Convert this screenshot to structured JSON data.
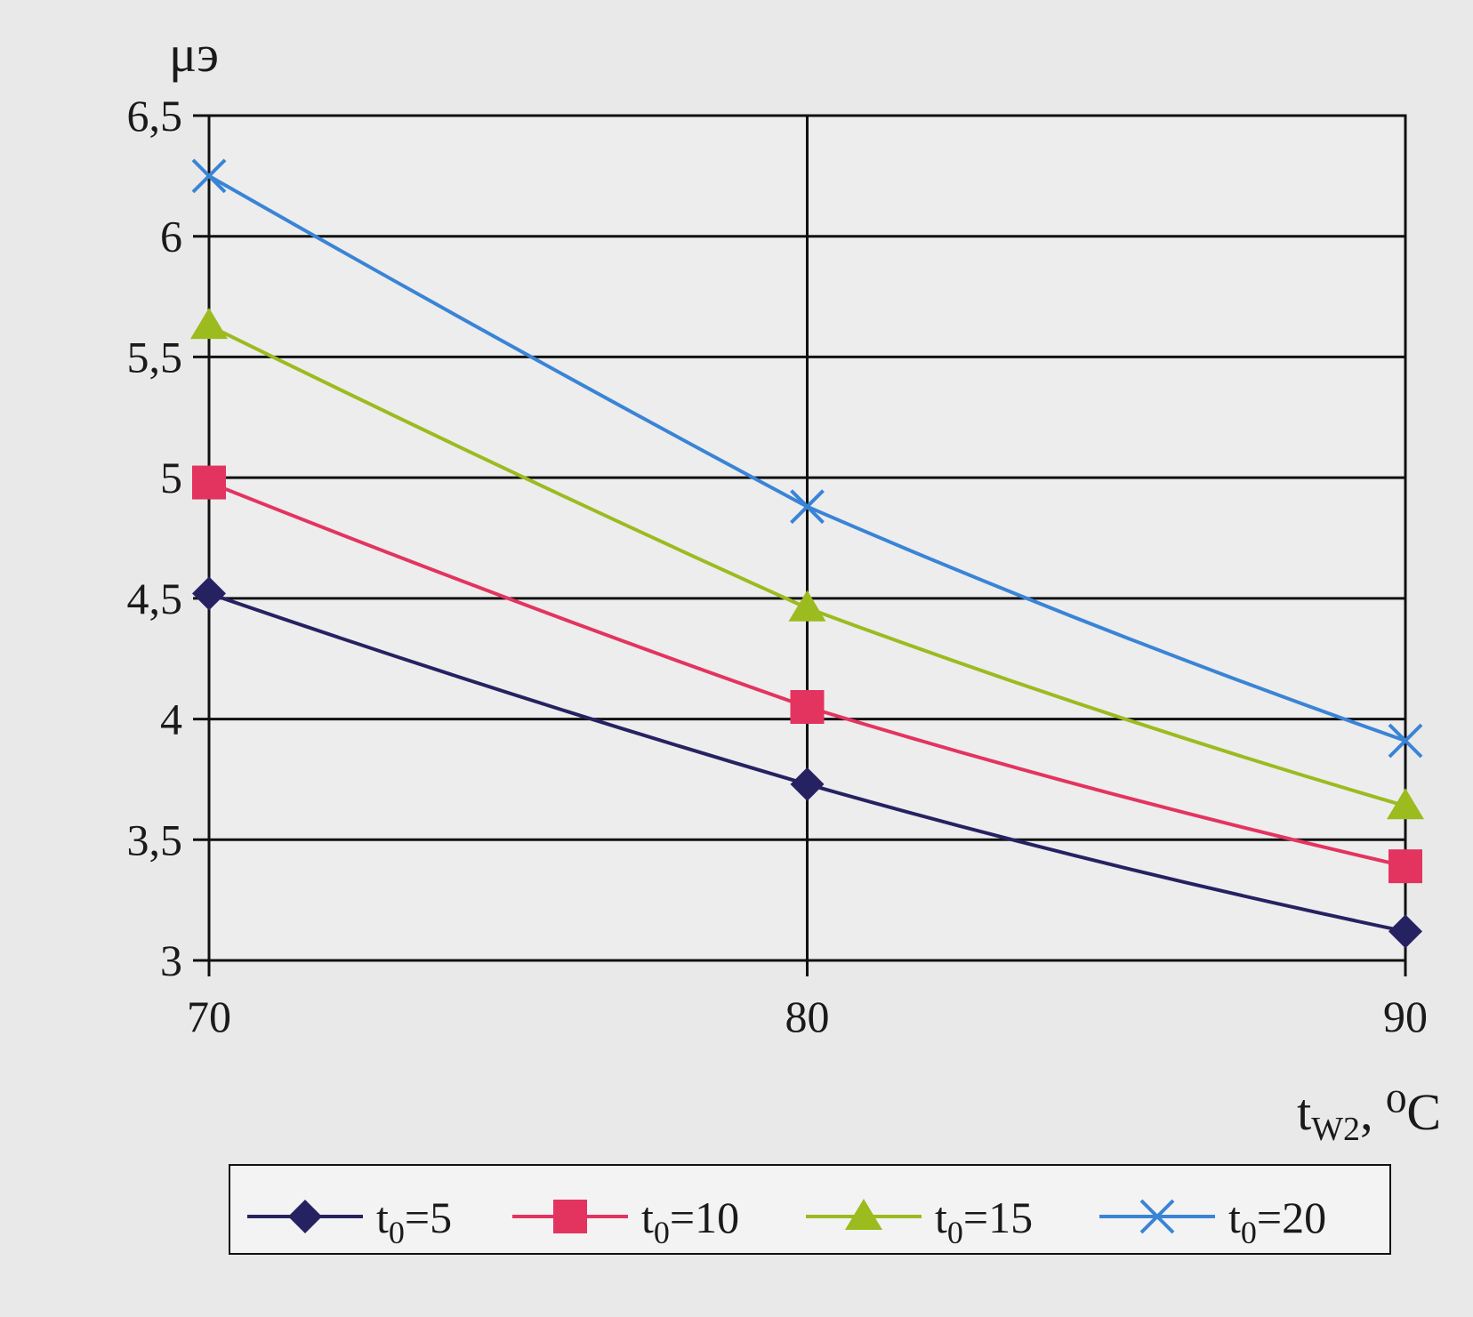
{
  "chart_data": {
    "type": "line",
    "title": "",
    "ylabel": "μэ",
    "xlabel": {
      "main": "t",
      "sub": "W2",
      "unit": ", ⁰C"
    },
    "x": [
      70,
      80,
      90
    ],
    "xlim": [
      70,
      90
    ],
    "ylim": [
      3,
      6.5
    ],
    "xticks": [
      "70",
      "80",
      "90"
    ],
    "yticks": [
      "3",
      "3,5",
      "4",
      "4,5",
      "5",
      "5,5",
      "6",
      "6,5"
    ],
    "grid": true,
    "legend_position": "bottom",
    "series": [
      {
        "name": "t0=5",
        "label_main": "t",
        "label_sub": "0",
        "label_rest": "=5",
        "values": [
          4.52,
          3.73,
          3.12
        ],
        "color": "#262262",
        "marker": "diamond"
      },
      {
        "name": "t0=10",
        "label_main": "t",
        "label_sub": "0",
        "label_rest": "=10",
        "values": [
          4.98,
          4.05,
          3.39
        ],
        "color": "#e3345f",
        "marker": "square"
      },
      {
        "name": "t0=15",
        "label_main": "t",
        "label_sub": "0",
        "label_rest": "=15",
        "values": [
          5.63,
          4.46,
          3.64
        ],
        "color": "#9bbb1f",
        "marker": "triangle"
      },
      {
        "name": "t0=20",
        "label_main": "t",
        "label_sub": "0",
        "label_rest": "=20",
        "values": [
          6.25,
          4.88,
          3.91
        ],
        "color": "#3a84d6",
        "marker": "x"
      }
    ]
  }
}
